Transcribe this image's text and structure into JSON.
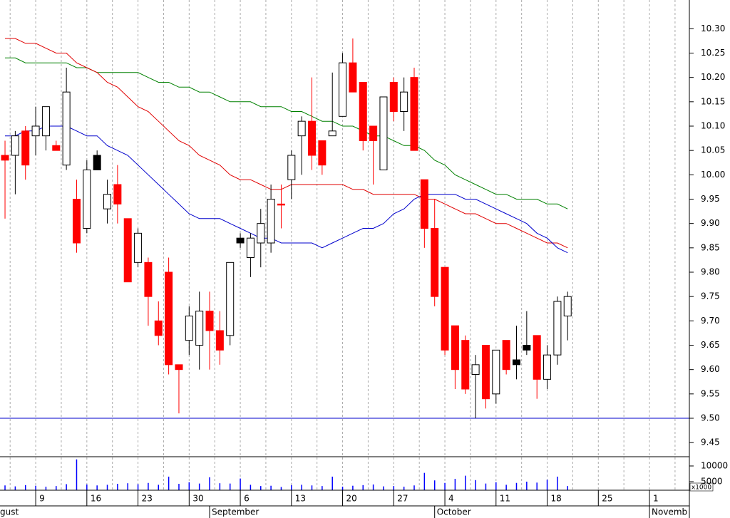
{
  "chart_data": {
    "type": "candlestick",
    "open": [
      10.04,
      10.04,
      10.09,
      10.08,
      10.08,
      10.06,
      10.02,
      9.95,
      9.89,
      10.04,
      9.93,
      9.98,
      9.91,
      9.82,
      9.82,
      9.7,
      9.8,
      9.61,
      9.66,
      9.65,
      9.72,
      9.68,
      9.67,
      9.87,
      9.83,
      9.86,
      9.86,
      9.94,
      9.99,
      10.08,
      10.11,
      10.07,
      10.08,
      10.12,
      10.23,
      10.19,
      10.1,
      10.01,
      10.19,
      10.13,
      10.2,
      9.99,
      9.89,
      9.81,
      9.69,
      9.66,
      9.59,
      9.65,
      9.55,
      9.66,
      9.62,
      9.65,
      9.67,
      9.58,
      9.63,
      9.71
    ],
    "high": [
      10.07,
      10.09,
      10.1,
      10.14,
      10.14,
      10.07,
      10.22,
      9.99,
      10.03,
      10.05,
      9.99,
      10.02,
      9.91,
      9.89,
      9.83,
      9.74,
      9.83,
      9.61,
      9.73,
      9.76,
      9.76,
      9.72,
      9.82,
      9.88,
      9.88,
      9.93,
      9.98,
      9.98,
      10.05,
      10.12,
      10.2,
      10.07,
      10.21,
      10.25,
      10.28,
      10.19,
      10.1,
      10.16,
      10.2,
      10.2,
      10.22,
      9.99,
      9.95,
      9.81,
      9.69,
      9.67,
      9.63,
      9.65,
      9.64,
      9.66,
      9.69,
      9.72,
      9.67,
      9.65,
      9.75,
      9.76
    ],
    "low": [
      9.91,
      9.96,
      9.99,
      10.04,
      10.05,
      10.05,
      10.01,
      9.84,
      9.88,
      10.01,
      9.9,
      9.9,
      9.78,
      9.81,
      9.69,
      9.65,
      9.59,
      9.51,
      9.63,
      9.6,
      9.6,
      9.61,
      9.65,
      9.85,
      9.79,
      9.81,
      9.84,
      9.89,
      9.95,
      10.0,
      10.01,
      10.0,
      10.08,
      10.12,
      10.17,
      10.05,
      9.98,
      10.01,
      10.11,
      10.09,
      10.05,
      9.85,
      9.73,
      9.63,
      9.56,
      9.55,
      9.5,
      9.52,
      9.53,
      9.59,
      9.58,
      9.63,
      9.54,
      9.56,
      9.61,
      9.66
    ],
    "close": [
      10.03,
      10.08,
      10.02,
      10.1,
      10.14,
      10.05,
      10.17,
      9.86,
      10.01,
      10.01,
      9.96,
      9.94,
      9.78,
      9.88,
      9.75,
      9.67,
      9.61,
      9.6,
      9.71,
      9.72,
      9.68,
      9.64,
      9.82,
      9.86,
      9.87,
      9.9,
      9.95,
      9.94,
      10.04,
      10.11,
      10.04,
      10.02,
      10.09,
      10.23,
      10.17,
      10.07,
      10.07,
      10.16,
      10.13,
      10.17,
      10.05,
      9.89,
      9.75,
      9.64,
      9.6,
      9.56,
      9.61,
      9.54,
      9.64,
      9.6,
      9.61,
      9.64,
      9.58,
      9.63,
      9.74,
      9.75
    ],
    "colors": [
      "#ff0000",
      "#ffffff",
      "#ff0000",
      "#ffffff",
      "#ffffff",
      "#ff0000",
      "#ffffff",
      "#ff0000",
      "#ffffff",
      "#000000",
      "#ffffff",
      "#ff0000",
      "#ff0000",
      "#ffffff",
      "#ff0000",
      "#ff0000",
      "#ff0000",
      "#ff0000",
      "#ffffff",
      "#ffffff",
      "#ff0000",
      "#ff0000",
      "#ffffff",
      "#000000",
      "#ffffff",
      "#ffffff",
      "#ffffff",
      "#ff0000",
      "#ffffff",
      "#ffffff",
      "#ff0000",
      "#ff0000",
      "#ffffff",
      "#ffffff",
      "#ff0000",
      "#ff0000",
      "#ff0000",
      "#ffffff",
      "#ff0000",
      "#ffffff",
      "#ff0000",
      "#ff0000",
      "#ff0000",
      "#ff0000",
      "#ff0000",
      "#ff0000",
      "#ffffff",
      "#ff0000",
      "#ffffff",
      "#ff0000",
      "#000000",
      "#000000",
      "#ff0000",
      "#ffffff",
      "#ffffff",
      "#ffffff"
    ],
    "volume": [
      3800,
      3500,
      3900,
      3700,
      3400,
      3600,
      4200,
      12100,
      4100,
      3800,
      4000,
      4300,
      4500,
      4200,
      4600,
      4000,
      6600,
      4300,
      4800,
      4400,
      6400,
      4500,
      4400,
      6000,
      4000,
      3600,
      3700,
      3300,
      3900,
      4000,
      3800,
      3600,
      6600,
      3400,
      3700,
      3900,
      4100,
      3500,
      3600,
      3400,
      3800,
      7800,
      5400,
      4600,
      5900,
      6900,
      5500,
      4400,
      4800,
      4000,
      4600,
      5000,
      4700,
      5600,
      6600,
      3600
    ],
    "volume_color": "#0000ff",
    "series": [
      {
        "color": "#008000",
        "values": [
          10.24,
          10.24,
          10.23,
          10.23,
          10.23,
          10.23,
          10.23,
          10.22,
          10.22,
          10.21,
          10.21,
          10.21,
          10.21,
          10.21,
          10.2,
          10.19,
          10.19,
          10.18,
          10.18,
          10.17,
          10.17,
          10.16,
          10.15,
          10.15,
          10.15,
          10.14,
          10.14,
          10.14,
          10.13,
          10.13,
          10.12,
          10.11,
          10.11,
          10.1,
          10.1,
          10.09,
          10.08,
          10.08,
          10.07,
          10.06,
          10.06,
          10.05,
          10.03,
          10.02,
          10.0,
          9.99,
          9.98,
          9.97,
          9.96,
          9.96,
          9.95,
          9.95,
          9.95,
          9.94,
          9.94,
          9.93
        ]
      },
      {
        "color": "#e00000",
        "values": [
          10.28,
          10.28,
          10.27,
          10.27,
          10.26,
          10.25,
          10.25,
          10.23,
          10.22,
          10.21,
          10.19,
          10.18,
          10.16,
          10.14,
          10.13,
          10.11,
          10.09,
          10.07,
          10.06,
          10.04,
          10.03,
          10.02,
          10.0,
          9.99,
          9.99,
          9.98,
          9.97,
          9.97,
          9.98,
          9.98,
          9.98,
          9.98,
          9.98,
          9.98,
          9.97,
          9.97,
          9.96,
          9.96,
          9.96,
          9.96,
          9.96,
          9.95,
          9.95,
          9.94,
          9.93,
          9.92,
          9.92,
          9.91,
          9.9,
          9.9,
          9.89,
          9.88,
          9.87,
          9.86,
          9.86,
          9.85
        ]
      },
      {
        "color": "#0000cc",
        "values": [
          10.08,
          10.08,
          10.09,
          10.09,
          10.1,
          10.1,
          10.1,
          10.09,
          10.08,
          10.08,
          10.06,
          10.05,
          10.04,
          10.02,
          10.0,
          9.98,
          9.96,
          9.94,
          9.92,
          9.91,
          9.91,
          9.91,
          9.9,
          9.89,
          9.88,
          9.87,
          9.87,
          9.86,
          9.86,
          9.86,
          9.86,
          9.85,
          9.86,
          9.87,
          9.88,
          9.89,
          9.89,
          9.9,
          9.92,
          9.93,
          9.95,
          9.96,
          9.96,
          9.96,
          9.96,
          9.95,
          9.95,
          9.94,
          9.93,
          9.92,
          9.91,
          9.9,
          9.88,
          9.87,
          9.85,
          9.84
        ]
      }
    ],
    "reference_line": {
      "value": 9.5,
      "color": "#0000cc"
    },
    "xlim": [
      -0.49,
      66.9
    ],
    "xticks": [
      {
        "value": 3,
        "label": "9"
      },
      {
        "value": 8,
        "label": "16"
      },
      {
        "value": 13,
        "label": "23"
      },
      {
        "value": 18,
        "label": "30"
      },
      {
        "value": 23,
        "label": "6"
      },
      {
        "value": 28,
        "label": "13"
      },
      {
        "value": 33,
        "label": "20"
      },
      {
        "value": 38,
        "label": "27"
      },
      {
        "value": 43,
        "label": "4"
      },
      {
        "value": 48,
        "label": "11"
      },
      {
        "value": 53,
        "label": "18"
      },
      {
        "value": 58,
        "label": "25"
      },
      {
        "value": 63,
        "label": "1"
      }
    ],
    "month_ticks": [
      {
        "value": null,
        "label": "gust"
      },
      {
        "value": 20,
        "label": "September"
      },
      {
        "value": 42,
        "label": "October"
      },
      {
        "value": 63,
        "label": "Novemb"
      }
    ],
    "ylim": [
      9.421,
      10.359
    ],
    "yticks": [
      {
        "value": 10.3,
        "label": "10.30"
      },
      10.25,
      {
        "value": 10.2,
        "label": "10.20"
      },
      10.15,
      {
        "value": 10.1,
        "label": "10.10"
      },
      10.05,
      {
        "value": 10,
        "label": "10.00"
      },
      9.95,
      {
        "value": 9.9,
        "label": "9.90"
      },
      9.85,
      {
        "value": 9.8,
        "label": "9.80"
      },
      9.75,
      {
        "value": 9.7,
        "label": "9.70"
      },
      9.65,
      {
        "value": 9.6,
        "label": "9.60"
      },
      9.55,
      {
        "value": 9.5,
        "label": "9.50"
      },
      9.45
    ],
    "volume_ylim": [
      2270,
      12950
    ],
    "volume_yticks": [
      10000,
      5000
    ],
    "volume_unit": "x1000",
    "grid": true
  }
}
